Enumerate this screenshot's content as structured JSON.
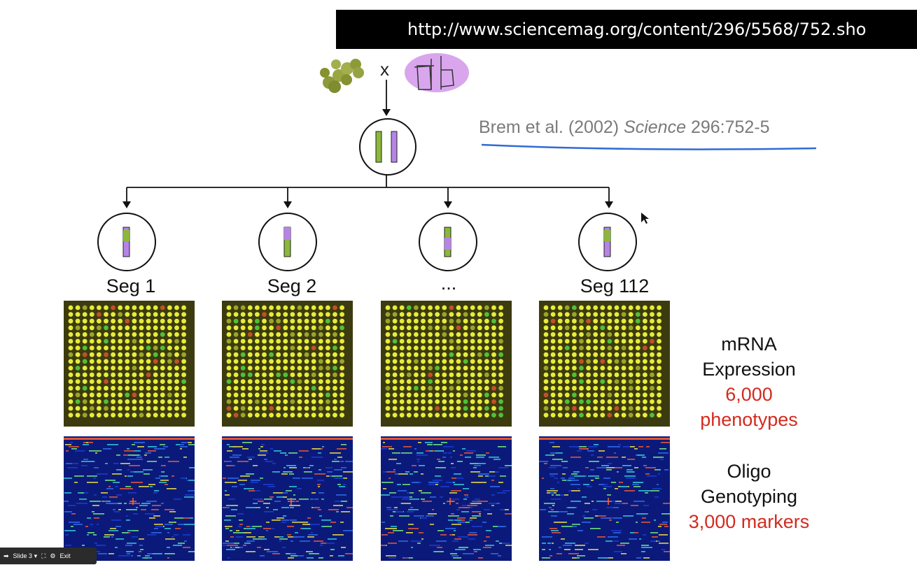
{
  "url_bar": {
    "text": "http://www.sciencemag.org/content/296/5568/752.sho"
  },
  "citation": {
    "authors": "Brem et al. (2002)",
    "journal": "Science",
    "volume_pages": "296:752-5"
  },
  "cross": {
    "symbol": "x"
  },
  "segregants": [
    {
      "label": "Seg 1"
    },
    {
      "label": "Seg 2"
    },
    {
      "label": "..."
    },
    {
      "label": "Seg 112"
    }
  ],
  "expression": {
    "line1": "mRNA",
    "line2": "Expression",
    "count": "6,000",
    "unit": "phenotypes"
  },
  "genotyping": {
    "line1": "Oligo",
    "line2": "Genotyping",
    "count_unit": "3,000 markers"
  },
  "toolbar": {
    "slide_label": "Slide 3",
    "exit_label": "Exit"
  },
  "colors": {
    "green_strain": "#8bb83a",
    "purple_strain": "#b784e6",
    "accent_red": "#d42a1e",
    "underline_blue": "#2f6bd6"
  }
}
